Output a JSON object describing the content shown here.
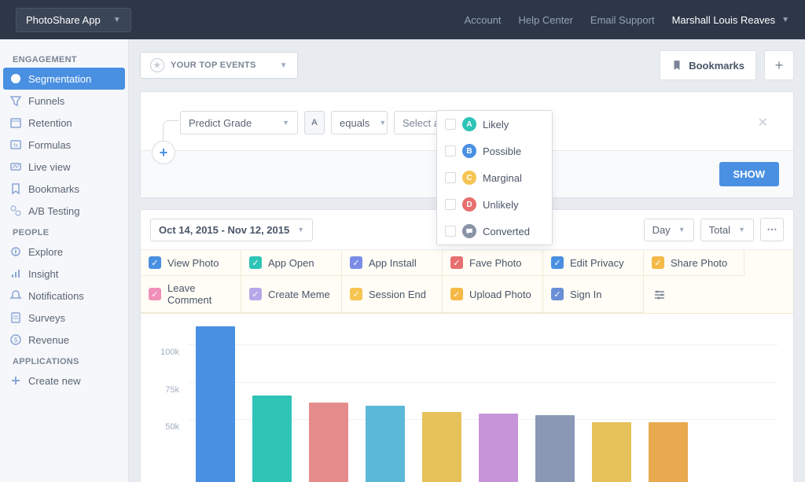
{
  "topbar": {
    "app_name": "PhotoShare App",
    "links": [
      "Account",
      "Help Center",
      "Email Support"
    ],
    "user_name": "Marshall Louis Reaves"
  },
  "sidebar": {
    "sections": [
      {
        "heading": "ENGAGEMENT",
        "items": [
          {
            "label": "Segmentation",
            "active": true
          },
          {
            "label": "Funnels"
          },
          {
            "label": "Retention"
          },
          {
            "label": "Formulas"
          },
          {
            "label": "Live view"
          },
          {
            "label": "Bookmarks"
          },
          {
            "label": "A/B Testing"
          }
        ]
      },
      {
        "heading": "PEOPLE",
        "items": [
          {
            "label": "Explore"
          },
          {
            "label": "Insight"
          },
          {
            "label": "Notifications"
          },
          {
            "label": "Surveys"
          },
          {
            "label": "Revenue"
          }
        ]
      },
      {
        "heading": "APPLICATIONS",
        "items": [
          {
            "label": "Create new"
          }
        ]
      }
    ]
  },
  "top_events_label": "YOUR TOP EVENTS",
  "bookmarks_label": "Bookmarks",
  "filter": {
    "property": "Predict Grade",
    "type_badge": "A",
    "operator": "equals",
    "value_placeholder": "Select a value",
    "show_label": "SHOW",
    "options": [
      {
        "badge": "A",
        "label": "Likely",
        "color": "#2ec4b6"
      },
      {
        "badge": "B",
        "label": "Possible",
        "color": "#4a90e2"
      },
      {
        "badge": "C",
        "label": "Marginal",
        "color": "#f5c451"
      },
      {
        "badge": "D",
        "label": "Unlikely",
        "color": "#e76f6f"
      },
      {
        "badge": "",
        "label": "Converted",
        "color": "#8a94a6",
        "icon": "chat"
      }
    ]
  },
  "chart": {
    "date_range": "Oct 14, 2015 - Nov 12, 2015",
    "granularity": "Day",
    "aggregation": "Total",
    "legend": [
      {
        "label": "View Photo",
        "color": "#4a90e2"
      },
      {
        "label": "App Open",
        "color": "#2ec4b6"
      },
      {
        "label": "App Install",
        "color": "#7b8ce8"
      },
      {
        "label": "Fave Photo",
        "color": "#e76f6f"
      },
      {
        "label": "Edit Privacy",
        "color": "#4a90e2"
      },
      {
        "label": "Share Photo",
        "color": "#f5b947"
      },
      {
        "label": "Leave Comment",
        "color": "#f08fb8"
      },
      {
        "label": "Create Meme",
        "color": "#b5a8e8"
      },
      {
        "label": "Session End",
        "color": "#f5c451"
      },
      {
        "label": "Upload Photo",
        "color": "#f5b947"
      },
      {
        "label": "Sign In",
        "color": "#6b8fd6"
      }
    ],
    "y_ticks": [
      {
        "label": "100k",
        "value": 100000
      },
      {
        "label": "75k",
        "value": 75000
      },
      {
        "label": "50k",
        "value": 50000
      }
    ],
    "y_max": 115000,
    "bars": [
      {
        "value": 112000,
        "color": "#4a90e2"
      },
      {
        "value": 66000,
        "color": "#2ec4b6"
      },
      {
        "value": 61000,
        "color": "#e58b8b"
      },
      {
        "value": 59000,
        "color": "#5bb8d9"
      },
      {
        "value": 55000,
        "color": "#e6c15a"
      },
      {
        "value": 54000,
        "color": "#c695d9"
      },
      {
        "value": 53000,
        "color": "#8a98b5"
      },
      {
        "value": 48000,
        "color": "#e6c15a"
      },
      {
        "value": 48000,
        "color": "#e8a94f"
      }
    ],
    "background": "#ffffff",
    "grid_color": "#eef1f5"
  }
}
